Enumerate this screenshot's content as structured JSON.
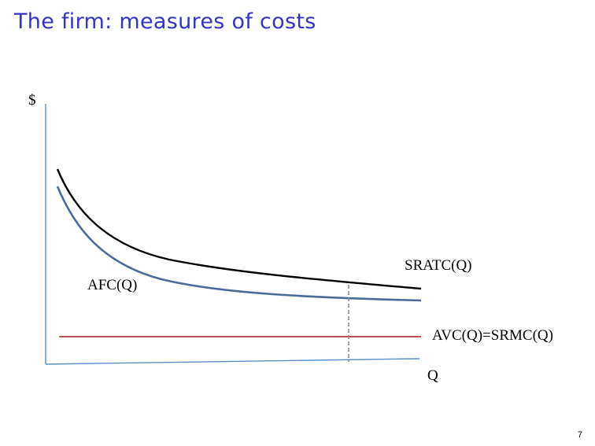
{
  "slide": {
    "title": "The firm: measures of costs",
    "number": "7"
  },
  "diagram": {
    "y_axis_label": "$",
    "x_axis_label": "Q",
    "curves": [
      {
        "id": "sratc",
        "label": "SRATC(Q)",
        "color": "#000000",
        "shape": "decreasing-hyperbola"
      },
      {
        "id": "afc",
        "label": "AFC(Q)",
        "color": "#4a6a9a",
        "shape": "decreasing-hyperbola"
      },
      {
        "id": "avc",
        "label": "AVC(Q)=SRMC(Q)",
        "color": "#b85450",
        "shape": "horizontal-line"
      }
    ],
    "axis_color": "#5b8fc7",
    "reference_line": {
      "style": "dashed",
      "color": "#888888"
    }
  }
}
